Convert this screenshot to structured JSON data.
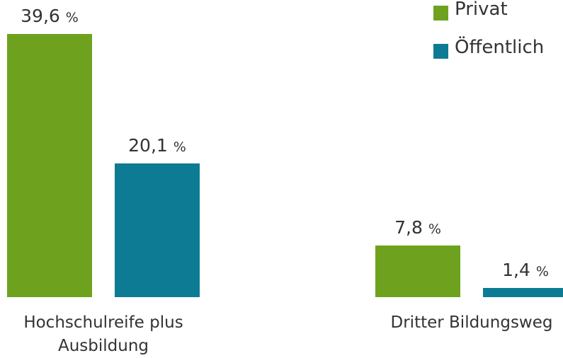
{
  "chart_data": {
    "type": "bar",
    "categories": [
      "Hochschulreife plus Ausbildung",
      "Dritter Bildungsweg"
    ],
    "series": [
      {
        "name": "Privat",
        "color": "#6ea21e",
        "values": [
          39.6,
          7.8
        ],
        "value_labels": [
          "39,6 %",
          "7,8 %"
        ]
      },
      {
        "name": "Öffentlich",
        "color": "#0e7b94",
        "values": [
          20.1,
          1.4
        ],
        "value_labels": [
          "20,1 %",
          "1,4 %"
        ]
      }
    ],
    "legend": "top-right"
  }
}
